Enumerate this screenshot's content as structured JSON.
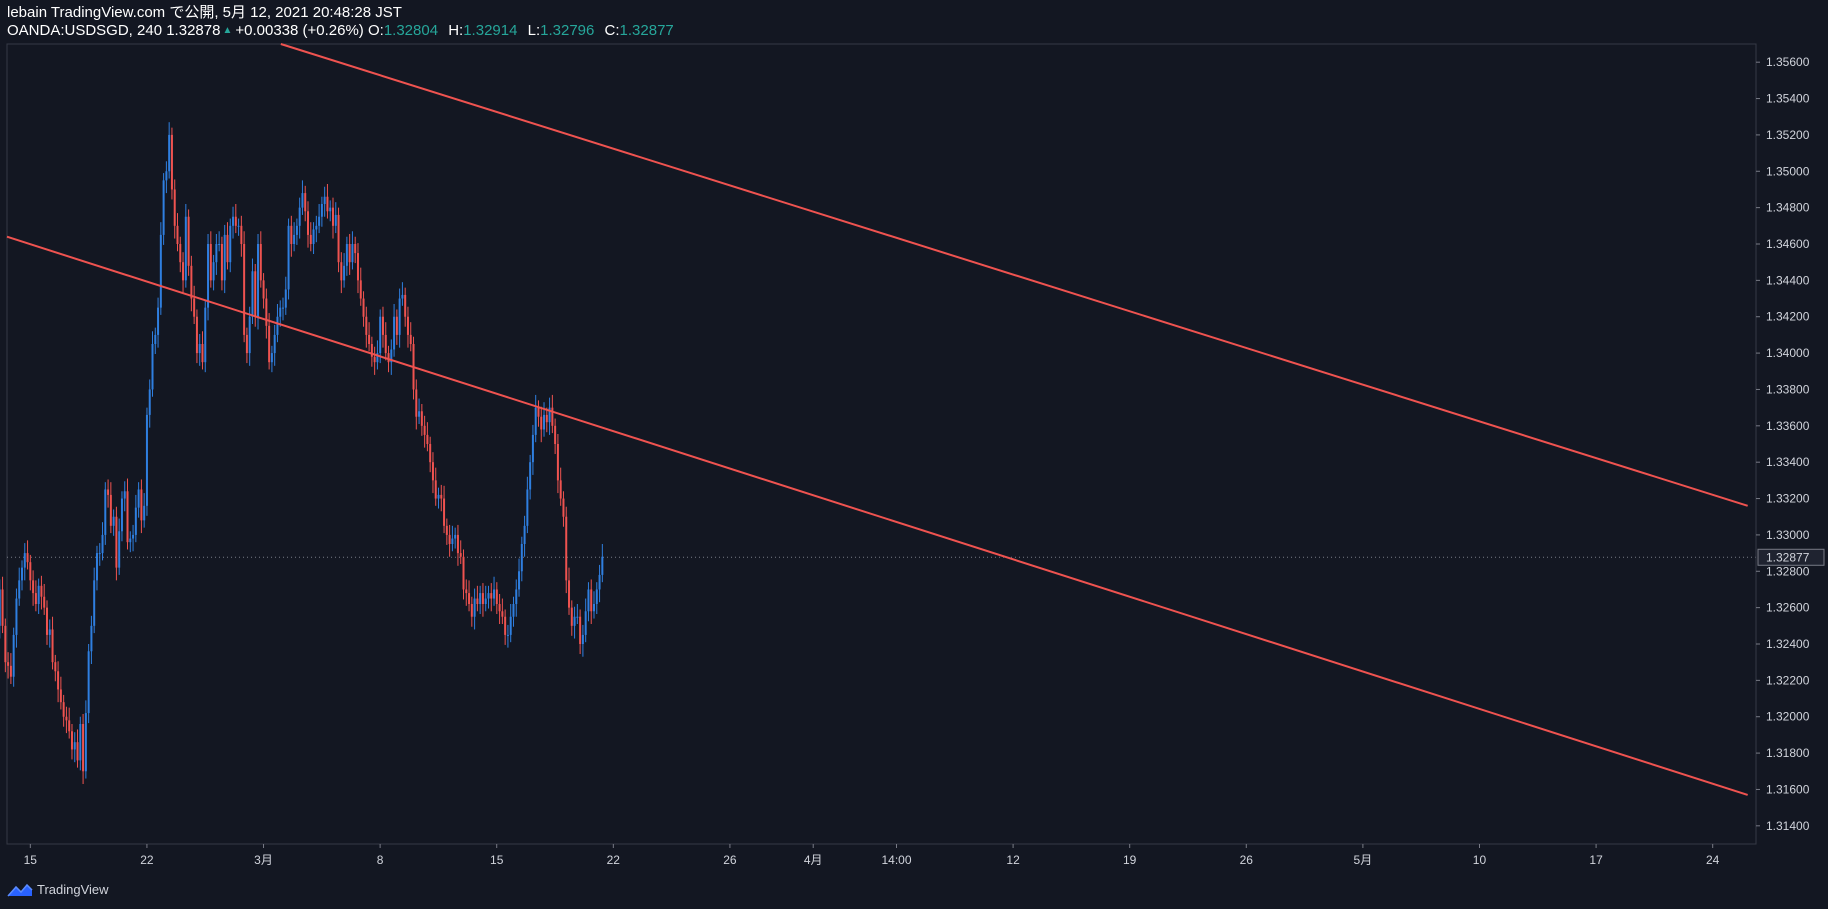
{
  "header": {
    "line1": "lebain TradingView.com で公開, 5月 12, 2021 20:48:28 JST",
    "symbol": "OANDA:USDSGD, 240",
    "last": "1.32878",
    "change": "+0.00338 (+0.26%)",
    "o_label": "O:",
    "o_value": "1.32804",
    "h_label": "H:",
    "h_value": "1.32914",
    "l_label": "L:",
    "l_value": "1.32796",
    "c_label": "C:",
    "c_value": "1.32877"
  },
  "footer": {
    "brand": "TradingView",
    "logo_icon": "tradingview-logo-icon"
  },
  "colors": {
    "up": "#2f7fe0",
    "down": "#ef5350",
    "channel": "#ef5350",
    "background": "#131722"
  },
  "chart_data": {
    "type": "candlestick",
    "title": "OANDA:USDSGD, 240",
    "ylim": [
      1.313,
      1.357
    ],
    "y_ticks": [
      "1.35600",
      "1.35400",
      "1.35200",
      "1.35000",
      "1.34800",
      "1.34600",
      "1.34400",
      "1.34200",
      "1.34000",
      "1.33800",
      "1.33600",
      "1.33400",
      "1.33200",
      "1.33000",
      "1.32800",
      "1.32600",
      "1.32400",
      "1.32200",
      "1.32000",
      "1.31800",
      "1.31600",
      "1.31400"
    ],
    "current_price": "1.32877",
    "x_ticks": [
      "15",
      "22",
      "3月",
      "8",
      "15",
      "22",
      "26",
      "4月",
      "14:00",
      "12",
      "19",
      "26",
      "5月",
      "10",
      "17",
      "24"
    ],
    "x_tick_positions": [
      0.4,
      7.4,
      14.4,
      21.4,
      28.4,
      35.4,
      42.4,
      47.4,
      52.4,
      59.4,
      66.4,
      73.4,
      80.4,
      87.4,
      94.4,
      101.4
    ],
    "x_range": [
      -1,
      104
    ],
    "series": [
      {
        "name": "",
        "step": 0.1667,
        "start": -1.6,
        "closes": [
          1.325,
          1.327,
          1.325,
          1.323,
          1.3228,
          1.3222,
          1.3245,
          1.3265,
          1.3275,
          1.3282,
          1.329,
          1.3285,
          1.3275,
          1.3268,
          1.3262,
          1.3272,
          1.3266,
          1.326,
          1.3245,
          1.3248,
          1.323,
          1.3225,
          1.3215,
          1.3208,
          1.32,
          1.3198,
          1.3192,
          1.3182,
          1.3186,
          1.3176,
          1.3196,
          1.317,
          1.3202,
          1.3236,
          1.325,
          1.3275,
          1.329,
          1.329,
          1.33,
          1.3325,
          1.3322,
          1.3305,
          1.331,
          1.3282,
          1.3302,
          1.332,
          1.3324,
          1.3296,
          1.3298,
          1.33,
          1.3315,
          1.3325,
          1.3308,
          1.3316,
          1.3366,
          1.338,
          1.3405,
          1.341,
          1.3425,
          1.3465,
          1.3495,
          1.35,
          1.352,
          1.349,
          1.347,
          1.346,
          1.345,
          1.344,
          1.3475,
          1.3448,
          1.343,
          1.342,
          1.34,
          1.3405,
          1.3395,
          1.3425,
          1.346,
          1.344,
          1.345,
          1.346,
          1.346,
          1.344,
          1.3465,
          1.345,
          1.347,
          1.3475,
          1.347,
          1.347,
          1.346,
          1.341,
          1.34,
          1.342,
          1.3445,
          1.342,
          1.346,
          1.344,
          1.343,
          1.3415,
          1.3395,
          1.34,
          1.341,
          1.342,
          1.3425,
          1.3425,
          1.3435,
          1.347,
          1.346,
          1.3465,
          1.347,
          1.348,
          1.3488,
          1.3478,
          1.3465,
          1.346,
          1.3468,
          1.347,
          1.3475,
          1.3482,
          1.3486,
          1.3478,
          1.348,
          1.347,
          1.3476,
          1.345,
          1.344,
          1.3448,
          1.346,
          1.345,
          1.346,
          1.3455,
          1.344,
          1.343,
          1.342,
          1.341,
          1.3405,
          1.3398,
          1.3395,
          1.34,
          1.342,
          1.341,
          1.34,
          1.3395,
          1.3402,
          1.342,
          1.341,
          1.343,
          1.3432,
          1.342,
          1.341,
          1.3405,
          1.338,
          1.3365,
          1.3368,
          1.336,
          1.3355,
          1.335,
          1.334,
          1.333,
          1.332,
          1.3322,
          1.332,
          1.3305,
          1.33,
          1.3295,
          1.3298,
          1.33,
          1.329,
          1.3288,
          1.327,
          1.3268,
          1.3262,
          1.3255,
          1.3265,
          1.3262,
          1.3268,
          1.3262,
          1.3265,
          1.3268,
          1.3265,
          1.327,
          1.3262,
          1.3258,
          1.3255,
          1.3245,
          1.3245,
          1.3255,
          1.3262,
          1.327,
          1.328,
          1.3295,
          1.3305,
          1.3325,
          1.334,
          1.3355,
          1.337,
          1.3365,
          1.3358,
          1.3366,
          1.3362,
          1.337,
          1.336,
          1.335,
          1.333,
          1.332,
          1.331,
          1.3275,
          1.326,
          1.325,
          1.3255,
          1.3255,
          1.324,
          1.3245,
          1.3258,
          1.327,
          1.3258,
          1.3262,
          1.327,
          1.3278,
          1.3288
        ]
      }
    ],
    "channel": {
      "upper": [
        {
          "x": 14.4,
          "y": 1.3573
        },
        {
          "x": 103.5,
          "y": 1.3316
        }
      ],
      "lower": [
        {
          "x": -1.0,
          "y": 1.3464
        },
        {
          "x": 103.5,
          "y": 1.3157
        }
      ]
    }
  }
}
